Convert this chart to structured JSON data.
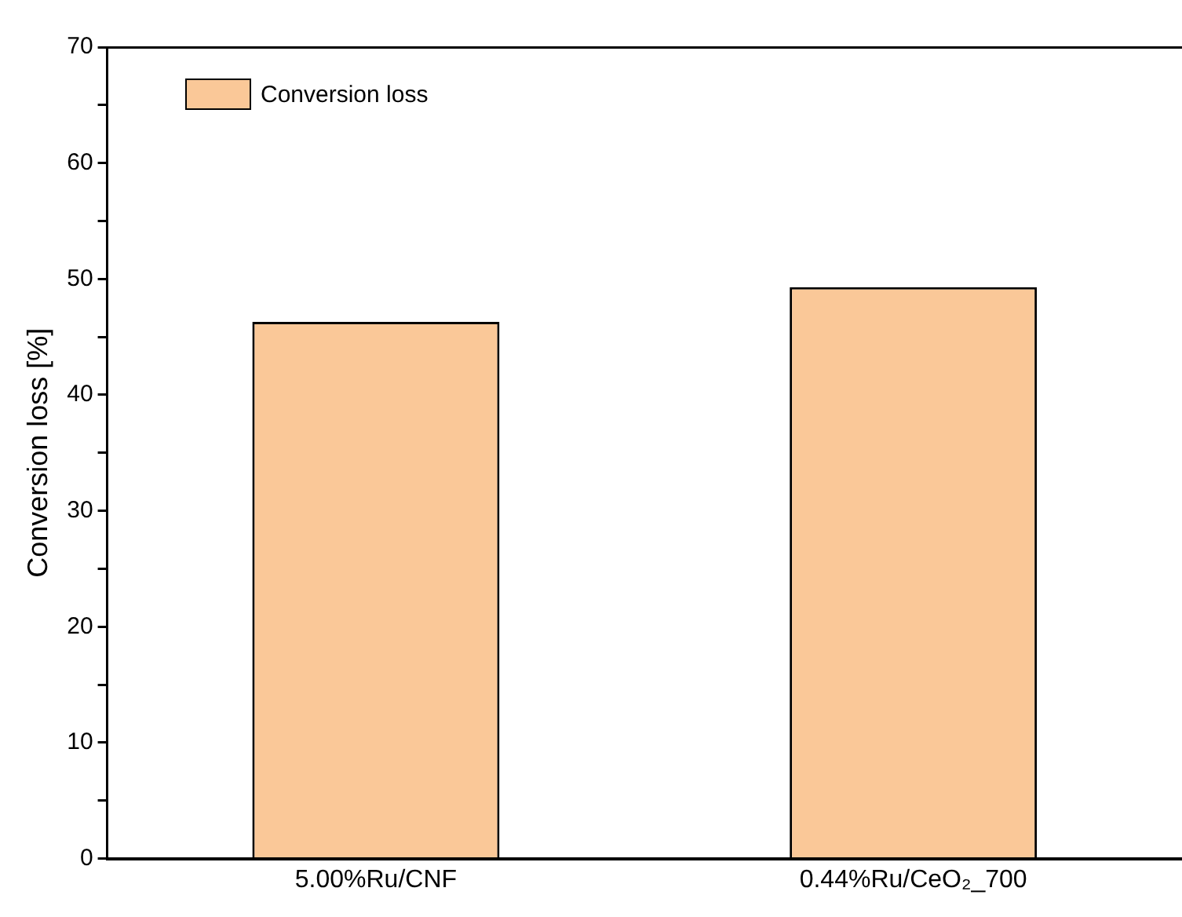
{
  "chart_data": {
    "type": "bar",
    "ylabel": "Conversion loss [%]",
    "categories": [
      "5.00%Ru/CNF",
      "0.44%Ru/CeO₂_700"
    ],
    "series": [
      {
        "name": "Conversion loss",
        "color": "#fac898",
        "values": [
          46.3,
          49.3
        ]
      }
    ],
    "ylim": [
      0,
      70
    ],
    "yticks": [
      0,
      {
        "value": 5,
        "label": null
      },
      10,
      {
        "value": 15,
        "label": null
      },
      20,
      {
        "value": 25,
        "label": null
      },
      30,
      {
        "value": 35,
        "label": null
      },
      40,
      {
        "value": 45,
        "label": null
      },
      50,
      {
        "value": 55,
        "label": null
      },
      60,
      {
        "value": 65,
        "label": null
      },
      70
    ],
    "grid": false,
    "legend": "top left"
  }
}
